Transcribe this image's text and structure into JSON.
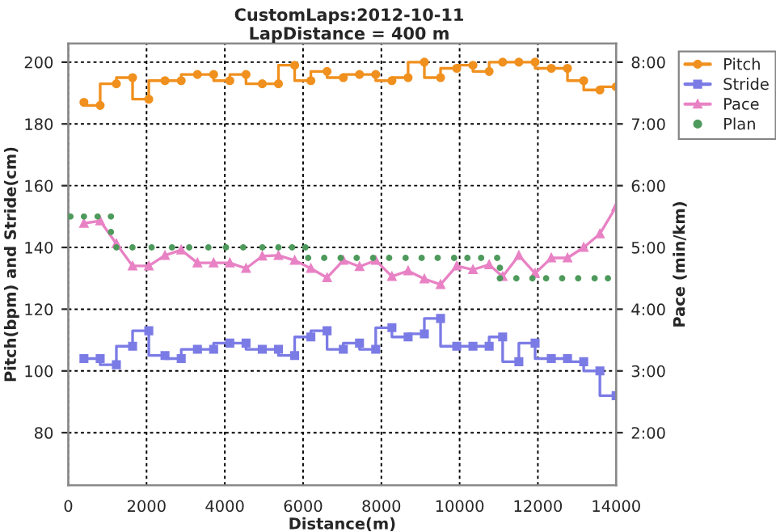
{
  "chart_data": {
    "type": "step",
    "title": "CustomLaps:2012-10-11",
    "subtitle": "LapDistance = 400 m",
    "xlabel": "Distance(m)",
    "ylabel": "Pitch(bpm) and Stride(cm)",
    "y2label": "Pace (min/km)",
    "x": [
      400,
      815,
      1229,
      1643,
      2057,
      2471,
      2886,
      3300,
      3714,
      4128,
      4542,
      4957,
      5371,
      5785,
      6199,
      6613,
      7028,
      7442,
      7856,
      8270,
      8684,
      9099,
      9513,
      9927,
      10341,
      10755,
      11100,
      11514,
      11929,
      12343,
      12757,
      13171,
      13585,
      14000
    ],
    "series": [
      {
        "name": "Pitch",
        "color": "#f0901e",
        "marker": "circle",
        "values": [
          187,
          186,
          193,
          195,
          188,
          194,
          194,
          196,
          196,
          194,
          196,
          193,
          193,
          199,
          194,
          197,
          195,
          196,
          196,
          194,
          195,
          200,
          195,
          198,
          199,
          197,
          200,
          200,
          200,
          198,
          198,
          194,
          191,
          192
        ]
      },
      {
        "name": "Stride",
        "color": "#7b7be6",
        "marker": "square",
        "values": [
          104,
          104,
          102,
          108,
          113,
          105,
          104,
          107,
          107,
          109,
          109,
          107,
          107,
          105,
          111,
          113,
          107,
          109,
          107,
          114,
          111,
          112,
          117,
          108,
          108,
          108,
          111,
          103,
          109,
          104,
          104,
          103,
          100,
          92
        ]
      },
      {
        "name": "Pace",
        "type": "line",
        "axis": "y2",
        "color": "#e882c4",
        "marker": "triangle",
        "values": [
          5.39,
          5.43,
          5.06,
          4.7,
          4.7,
          4.87,
          4.96,
          4.75,
          4.75,
          4.75,
          4.66,
          4.86,
          4.87,
          4.79,
          4.66,
          4.51,
          4.79,
          4.69,
          4.79,
          4.53,
          4.62,
          4.49,
          4.4,
          4.7,
          4.64,
          4.72,
          4.53,
          4.87,
          4.58,
          4.83,
          4.83,
          5.0,
          5.22,
          5.66
        ]
      },
      {
        "name": "Plan",
        "type": "scatter",
        "axis": "y2",
        "color": "#4e9a5c",
        "marker": "circle",
        "x": [
          55,
          400,
          750,
          1090,
          1090,
          1230,
          1640,
          2130,
          2650,
          3090,
          3580,
          4030,
          4470,
          4960,
          5370,
          5720,
          6060,
          6130,
          6540,
          6960,
          7370,
          7790,
          8200,
          8620,
          9030,
          9440,
          9860,
          10200,
          10550,
          10960,
          11030,
          11030,
          11450,
          11860,
          12210,
          12620,
          13030,
          13450,
          13790
        ],
        "values": [
          5.5,
          5.5,
          5.5,
          5.5,
          5.25,
          5.0,
          5.0,
          5.0,
          5.0,
          5.0,
          5.0,
          5.0,
          5.0,
          5.0,
          5.0,
          5.0,
          5.0,
          4.83,
          4.83,
          4.83,
          4.83,
          4.83,
          4.83,
          4.83,
          4.83,
          4.83,
          4.83,
          4.83,
          4.83,
          4.83,
          4.67,
          4.5,
          4.5,
          4.5,
          4.5,
          4.5,
          4.5,
          4.5,
          4.5
        ]
      }
    ],
    "xlim": [
      0,
      14000
    ],
    "xticks": [
      0,
      2000,
      4000,
      6000,
      8000,
      10000,
      12000,
      14000
    ],
    "ylim": [
      63,
      206
    ],
    "yticks": [
      80,
      100,
      120,
      140,
      160,
      180,
      200
    ],
    "y2lim": [
      1.15,
      8.3
    ],
    "y2ticks": [
      {
        "value": 2,
        "label": "2:00"
      },
      {
        "value": 3,
        "label": "3:00"
      },
      {
        "value": 4,
        "label": "4:00"
      },
      {
        "value": 5,
        "label": "5:00"
      },
      {
        "value": 6,
        "label": "6:00"
      },
      {
        "value": 7,
        "label": "7:00"
      },
      {
        "value": 8,
        "label": "8:00"
      }
    ],
    "grid": true,
    "legend": "right"
  }
}
